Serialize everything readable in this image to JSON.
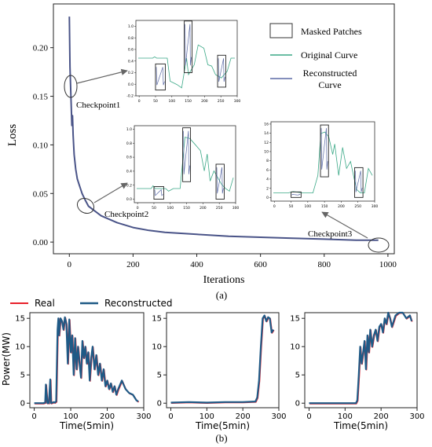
{
  "chart_data": [
    {
      "type": "line",
      "panel_label": "(a)",
      "xlabel": "Iterations",
      "ylabel": "Loss",
      "xlim": [
        -50,
        1020
      ],
      "ylim": [
        -0.012,
        0.245
      ],
      "x_ticks": [
        0,
        200,
        400,
        600,
        800,
        1000
      ],
      "y_ticks": [
        0.0,
        0.05,
        0.1,
        0.15,
        0.2
      ],
      "x_tick_labels": [
        "0",
        "200",
        "400",
        "600",
        "800",
        "1000"
      ],
      "y_tick_labels": [
        "0.00",
        "0.05",
        "0.10",
        "0.15",
        "0.20"
      ],
      "series": [
        {
          "color": "#4a5488",
          "x": [
            0,
            2,
            4,
            6,
            8,
            10,
            12,
            15,
            20,
            25,
            30,
            40,
            50,
            60,
            80,
            100,
            150,
            200,
            250,
            300,
            400,
            500,
            600,
            700,
            800,
            900,
            970
          ],
          "y": [
            0.232,
            0.18,
            0.16,
            0.14,
            0.12,
            0.13,
            0.11,
            0.09,
            0.075,
            0.065,
            0.06,
            0.05,
            0.043,
            0.037,
            0.032,
            0.027,
            0.02,
            0.015,
            0.012,
            0.01,
            0.008,
            0.006,
            0.005,
            0.004,
            0.003,
            0.002,
            0.002
          ]
        }
      ],
      "annotations": [
        {
          "text": "Checkpoint1",
          "x": 0,
          "y": 0.14
        },
        {
          "text": "Checkpoint2",
          "x": 50,
          "y": 0.033
        },
        {
          "text": "Checkpoint3",
          "x": 960,
          "y": 0.002
        }
      ],
      "legend": {
        "placement": "top-right",
        "entries": [
          {
            "label": "Masked Patches",
            "type": "box",
            "color": "#333333"
          },
          {
            "label": "Original Curve",
            "type": "line",
            "color": "#3aa886"
          },
          {
            "label": "Reconstructed Curve",
            "label_lines": [
              "Reconstructed",
              "Curve"
            ],
            "type": "line",
            "color": "#5b6aa6"
          }
        ]
      },
      "insets": [
        {
          "name": "inset-checkpoint1",
          "xlim": [
            -10,
            300
          ],
          "ylim": [
            -0.2,
            1.1
          ],
          "x_ticks": [
            0,
            50,
            100,
            150,
            200,
            250,
            300
          ],
          "y_ticks": [
            -0.2,
            0.0,
            0.2,
            0.4,
            0.6,
            0.8,
            1.0
          ],
          "x_tick_labels": [
            "0",
            "50",
            "100",
            "150",
            "200",
            "250",
            "300"
          ],
          "y_tick_labels": [
            "-0.2",
            "0.0",
            "0.2",
            "0.4",
            "0.6",
            "0.8",
            "1.0"
          ],
          "boxes": [
            [
              50,
              80,
              -0.1,
              0.35
            ],
            [
              138,
              162,
              0.2,
              1.09
            ],
            [
              240,
              265,
              -0.05,
              0.5
            ]
          ]
        },
        {
          "name": "inset-checkpoint2",
          "xlim": [
            -10,
            300
          ],
          "ylim": [
            -0.05,
            1.05
          ],
          "x_ticks": [
            0,
            50,
            100,
            150,
            200,
            250,
            300
          ],
          "y_ticks": [
            0.0,
            0.2,
            0.4,
            0.6,
            0.8,
            1.0
          ],
          "x_tick_labels": [
            "0",
            "50",
            "100",
            "150",
            "200",
            "250",
            "300"
          ],
          "y_tick_labels": [
            "0.0",
            "0.2",
            "0.4",
            "0.6",
            "0.8",
            "1.0"
          ],
          "boxes": [
            [
              50,
              80,
              0.0,
              0.18
            ],
            [
              138,
              162,
              0.25,
              1.02
            ],
            [
              240,
              265,
              0.0,
              0.5
            ]
          ]
        },
        {
          "name": "inset-checkpoint3",
          "xlim": [
            -10,
            300
          ],
          "ylim": [
            -0.8,
            16.5
          ],
          "x_ticks": [
            0,
            50,
            100,
            150,
            200,
            250,
            300
          ],
          "y_ticks": [
            0,
            2,
            4,
            6,
            8,
            10,
            12,
            14,
            16
          ],
          "x_tick_labels": [
            "0",
            "50",
            "100",
            "150",
            "200",
            "250",
            "300"
          ],
          "y_tick_labels": [
            "0",
            "2",
            "4",
            "6",
            "8",
            "10",
            "12",
            "14",
            "16"
          ],
          "boxes": [
            [
              50,
              80,
              0.0,
              1.2
            ],
            [
              138,
              162,
              4.5,
              15.8
            ],
            [
              240,
              265,
              0.0,
              6.5
            ]
          ]
        }
      ]
    },
    {
      "type": "line",
      "panel_label": "(b)",
      "ylabel": "Power(MW)",
      "xlabel": "Time(5min)",
      "legend": {
        "placement": "top-left",
        "entries": [
          {
            "label": "Real",
            "color": "#e8202a"
          },
          {
            "label": "Reconstructed",
            "color": "#1f5a86"
          }
        ]
      },
      "subplots": [
        {
          "name": "subplot-1",
          "xlim": [
            -12,
            300
          ],
          "ylim": [
            -0.8,
            16
          ],
          "x_ticks": [
            0,
            100,
            200,
            300
          ],
          "x_tick_labels": [
            "0",
            "100",
            "200",
            "300"
          ],
          "y_ticks": [
            0,
            5,
            10,
            15
          ],
          "y_tick_labels": [
            "0",
            "5",
            "10",
            "15"
          ],
          "x": [
            0,
            25,
            30,
            32,
            36,
            38,
            40,
            44,
            46,
            50,
            54,
            56,
            60,
            64,
            66,
            68,
            72,
            76,
            80,
            84,
            88,
            92,
            96,
            100,
            104,
            108,
            112,
            116,
            120,
            124,
            128,
            132,
            136,
            140,
            144,
            148,
            152,
            156,
            160,
            165,
            170,
            175,
            180,
            185,
            190,
            195,
            200,
            205,
            210,
            215,
            220,
            225,
            230,
            240,
            250,
            260,
            270,
            280,
            285
          ],
          "y": [
            0,
            0,
            0.1,
            3.3,
            0,
            0.2,
            0,
            4.2,
            0,
            0.1,
            0.2,
            0.1,
            0.3,
            13,
            15,
            12,
            15,
            14.5,
            13,
            15.2,
            14,
            7,
            14.8,
            9,
            12,
            5,
            11.5,
            6,
            10,
            7,
            4.5,
            11,
            8,
            10,
            7,
            9,
            4,
            8,
            10,
            6,
            8.5,
            5,
            7,
            4,
            6,
            3,
            4,
            2.5,
            3.5,
            2,
            3,
            1.5,
            2.5,
            4,
            2.5,
            1.8,
            1.5,
            0.5,
            0.3
          ]
        },
        {
          "name": "subplot-2",
          "xlim": [
            -12,
            300
          ],
          "ylim": [
            -0.8,
            16
          ],
          "x_ticks": [
            0,
            100,
            200,
            300
          ],
          "x_tick_labels": [
            "0",
            "100",
            "200",
            "300"
          ],
          "y_ticks": [
            0,
            5,
            10,
            15
          ],
          "y_tick_labels": [
            "0",
            "5",
            "10",
            "15"
          ],
          "x": [
            0,
            50,
            100,
            150,
            200,
            235,
            240,
            245,
            250,
            255,
            260,
            265,
            270,
            275,
            280,
            285
          ],
          "y": [
            0.1,
            0.2,
            0.1,
            0.2,
            0.2,
            0.3,
            1,
            4,
            10,
            15,
            15.5,
            14.5,
            15.2,
            15,
            12.5,
            13
          ]
        },
        {
          "name": "subplot-3",
          "xlim": [
            -12,
            300
          ],
          "ylim": [
            -0.8,
            16
          ],
          "x_ticks": [
            0,
            100,
            200,
            300
          ],
          "x_tick_labels": [
            "0",
            "100",
            "200",
            "300"
          ],
          "y_ticks": [
            0,
            5,
            10,
            15
          ],
          "y_tick_labels": [
            "0",
            "5",
            "10",
            "15"
          ],
          "x": [
            0,
            50,
            100,
            130,
            134,
            138,
            142,
            146,
            150,
            154,
            158,
            162,
            166,
            170,
            175,
            180,
            185,
            190,
            195,
            200,
            205,
            210,
            215,
            220,
            225,
            230,
            240,
            250,
            260,
            270,
            280,
            285
          ],
          "y": [
            0,
            0,
            0,
            0,
            0.5,
            5,
            10,
            7,
            9,
            11,
            6,
            12,
            9,
            13,
            10,
            12,
            13,
            11,
            13.5,
            14,
            12.5,
            15,
            14,
            16,
            15,
            13.5,
            15.5,
            16,
            16,
            15,
            15.5,
            14.5
          ]
        }
      ]
    }
  ]
}
